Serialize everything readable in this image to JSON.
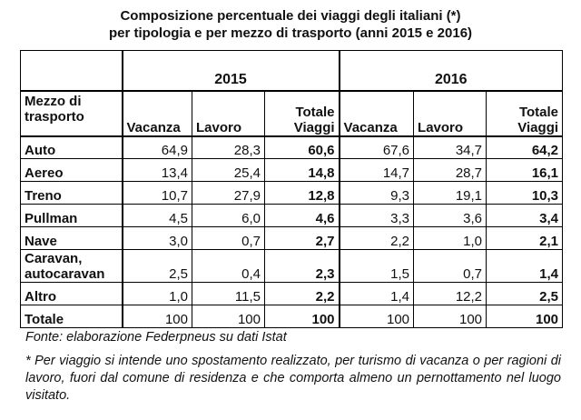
{
  "title": {
    "line1": "Composizione percentuale dei viaggi degli italiani (*)",
    "line2": "per tipologia e per mezzo di trasporto (anni 2015 e 2016)"
  },
  "years": [
    "2015",
    "2016"
  ],
  "header": {
    "mezzo": "Mezzo di trasporto",
    "cols": [
      "Vacanza",
      "Lavoro",
      "Totale Viaggi",
      "Vacanza",
      "Lavoro",
      "Totale Viaggi"
    ]
  },
  "rows": [
    {
      "label": "Auto",
      "values": [
        "64,9",
        "28,3",
        "60,6",
        "67,6",
        "34,7",
        "64,2"
      ]
    },
    {
      "label": "Aereo",
      "values": [
        "13,4",
        "25,4",
        "14,8",
        "14,7",
        "28,7",
        "16,1"
      ]
    },
    {
      "label": "Treno",
      "values": [
        "10,7",
        "27,9",
        "12,8",
        "9,3",
        "19,1",
        "10,3"
      ]
    },
    {
      "label": "Pullman",
      "values": [
        "4,5",
        "6,0",
        "4,6",
        "3,3",
        "3,6",
        "3,4"
      ]
    },
    {
      "label": "Nave",
      "values": [
        "3,0",
        "0,7",
        "2,7",
        "2,2",
        "1,0",
        "2,1"
      ]
    },
    {
      "label": "Caravan, autocaravan",
      "values": [
        "2,5",
        "0,4",
        "2,3",
        "1,5",
        "0,7",
        "1,4"
      ]
    },
    {
      "label": "Altro",
      "values": [
        "1,0",
        "11,5",
        "2,2",
        "1,4",
        "12,2",
        "2,5"
      ]
    },
    {
      "label": "Totale",
      "values": [
        "100",
        "100",
        "100",
        "100",
        "100",
        "100"
      ]
    }
  ],
  "source": "Fonte: elaborazione Federpneus su dati Istat",
  "footnote": "* Per viaggio si intende uno spostamento realizzato, per turismo di vacanza o per ragioni di lavoro, fuori dal comune di residenza e che comporta almeno un pernottamento nel luogo visitato."
}
